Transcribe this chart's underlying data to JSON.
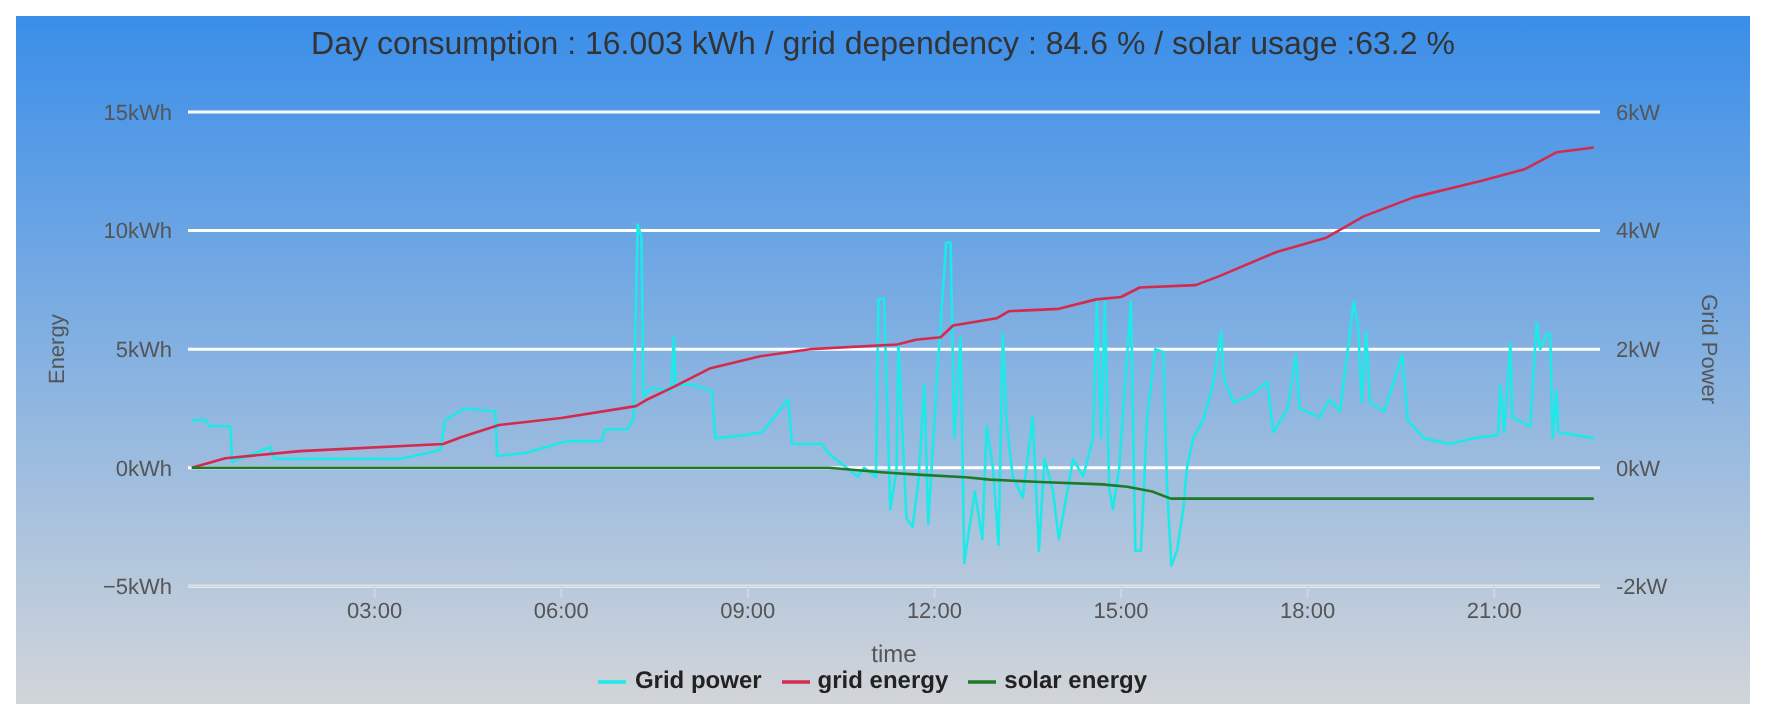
{
  "chart_data": {
    "type": "line",
    "title": "Day consumption : 16.003 kWh / grid dependency : 84.6 % / solar usage :63.2 %",
    "xlabel": "time",
    "ylabel": "Energy",
    "y2label": "Grid Power",
    "xlim": [
      0,
      22.7
    ],
    "xticks": [
      {
        "value": 3,
        "label": "03:00"
      },
      {
        "value": 6,
        "label": "06:00"
      },
      {
        "value": 9,
        "label": "09:00"
      },
      {
        "value": 12,
        "label": "12:00"
      },
      {
        "value": 15,
        "label": "15:00"
      },
      {
        "value": 18,
        "label": "18:00"
      },
      {
        "value": 21,
        "label": "21:00"
      }
    ],
    "ylim": [
      -5,
      15
    ],
    "yticks": [
      {
        "value": -5,
        "label": "−5kWh"
      },
      {
        "value": 0,
        "label": "0kWh"
      },
      {
        "value": 5,
        "label": "5kWh"
      },
      {
        "value": 10,
        "label": "10kWh"
      },
      {
        "value": 15,
        "label": "15kWh"
      }
    ],
    "y2lim": [
      -2,
      6
    ],
    "y2ticks": [
      {
        "value": -2,
        "label": "-2kW"
      },
      {
        "value": 0,
        "label": "0kW"
      },
      {
        "value": 2,
        "label": "2kW"
      },
      {
        "value": 4,
        "label": "4kW"
      },
      {
        "value": 6,
        "label": "6kW"
      }
    ],
    "grid": "y",
    "legend": "bottom",
    "line_style": "solid",
    "series": [
      {
        "name": "Grid power",
        "color": "#1de9e9",
        "axis": "y2",
        "x": [
          0.06,
          0.29,
          0.35,
          0.68,
          0.71,
          1.32,
          1.39,
          2.13,
          3.42,
          4.06,
          4.13,
          4.45,
          4.94,
          4.97,
          5.42,
          6.1,
          6.65,
          6.71,
          7.06,
          7.16,
          7.23,
          7.29,
          7.32,
          7.45,
          7.77,
          7.81,
          7.84,
          8.1,
          8.42,
          8.48,
          8.97,
          9.23,
          9.65,
          9.71,
          10.19,
          10.29,
          10.77,
          10.87,
          11.06,
          11.1,
          11.19,
          11.29,
          11.39,
          11.42,
          11.55,
          11.65,
          11.74,
          11.84,
          11.9,
          12.06,
          12.19,
          12.26,
          12.32,
          12.42,
          12.48,
          12.65,
          12.77,
          12.84,
          12.94,
          13.03,
          13.1,
          13.16,
          13.26,
          13.42,
          13.58,
          13.68,
          13.77,
          13.9,
          14.0,
          14.23,
          14.39,
          14.55,
          14.61,
          14.68,
          14.74,
          14.81,
          14.87,
          14.97,
          15.16,
          15.23,
          15.32,
          15.42,
          15.55,
          15.68,
          15.74,
          15.81,
          15.9,
          16.0,
          16.06,
          16.16,
          16.32,
          16.48,
          16.61,
          16.65,
          16.81,
          17.13,
          17.35,
          17.45,
          17.68,
          17.81,
          17.87,
          18.19,
          18.35,
          18.52,
          18.74,
          18.81,
          18.87,
          18.94,
          19.0,
          19.23,
          19.52,
          19.61,
          19.87,
          20.29,
          20.68,
          21.06,
          21.1,
          21.16,
          21.26,
          21.29,
          21.58,
          21.68,
          21.74,
          21.84,
          21.9,
          21.94,
          22.0,
          22.03,
          22.61
        ],
        "values": [
          0.8,
          0.8,
          0.7,
          0.7,
          0.1,
          0.35,
          0.15,
          0.15,
          0.15,
          0.3,
          0.8,
          1.0,
          0.95,
          0.2,
          0.25,
          0.45,
          0.45,
          0.65,
          0.65,
          0.8,
          4.1,
          3.9,
          1.2,
          1.35,
          1.3,
          2.2,
          1.4,
          1.4,
          1.3,
          0.5,
          0.55,
          0.6,
          1.15,
          0.4,
          0.4,
          0.25,
          -0.15,
          0,
          -0.15,
          2.85,
          2.85,
          -0.7,
          -0.05,
          2.1,
          -0.85,
          -1.0,
          -0.25,
          1.4,
          -0.95,
          1.8,
          3.8,
          3.8,
          0.5,
          2.2,
          -1.6,
          -0.4,
          -1.2,
          0.7,
          0,
          -1.3,
          2.25,
          0.75,
          -0.15,
          -0.5,
          0.85,
          -1.4,
          0.15,
          -0.35,
          -1.2,
          0.15,
          -0.15,
          0.5,
          2.8,
          0.5,
          2.8,
          -0.35,
          -0.7,
          0,
          2.8,
          -1.4,
          -1.4,
          0.85,
          2.0,
          1.95,
          -0.35,
          -1.65,
          -1.4,
          -0.7,
          0,
          0.5,
          0.8,
          1.4,
          2.3,
          1.5,
          1.1,
          1.25,
          1.45,
          0.6,
          1.0,
          1.9,
          1.0,
          0.85,
          1.15,
          0.95,
          2.8,
          2.4,
          1.1,
          2.3,
          1.1,
          0.95,
          1.9,
          0.8,
          0.5,
          0.4,
          0.5,
          0.55,
          1.4,
          0.6,
          2.1,
          0.85,
          0.7,
          2.45,
          2.0,
          2.25,
          2.25,
          0.5,
          1.3,
          0.6,
          0.5
        ]
      },
      {
        "name": "grid energy",
        "color": "#d42a4e",
        "x": [
          0.06,
          0.6,
          1.8,
          4.1,
          4.4,
          5.0,
          6.0,
          7.2,
          7.4,
          7.8,
          8.4,
          9.2,
          10.0,
          11.4,
          11.7,
          12.1,
          12.3,
          13.0,
          13.2,
          14.0,
          14.6,
          15.0,
          15.3,
          16.2,
          16.6,
          17.5,
          18.3,
          18.9,
          19.7,
          20.8,
          21.5,
          22.0,
          22.6
        ],
        "values": [
          0,
          0.4,
          0.7,
          1.0,
          1.3,
          1.8,
          2.1,
          2.6,
          2.9,
          3.4,
          4.2,
          4.7,
          5.0,
          5.2,
          5.4,
          5.5,
          6.0,
          6.3,
          6.6,
          6.7,
          7.1,
          7.2,
          7.6,
          7.7,
          8.1,
          9.1,
          9.7,
          10.6,
          11.4,
          12.1,
          12.6,
          13.3,
          13.5
        ]
      },
      {
        "name": "solar energy",
        "color": "#1e7a2a",
        "x": [
          0.06,
          10.3,
          11.2,
          11.8,
          12.5,
          12.9,
          13.7,
          14.7,
          15.1,
          15.5,
          15.8,
          22.6
        ],
        "values": [
          0,
          0,
          -0.2,
          -0.3,
          -0.4,
          -0.5,
          -0.6,
          -0.7,
          -0.8,
          -1.0,
          -1.3,
          -1.3
        ]
      }
    ]
  }
}
